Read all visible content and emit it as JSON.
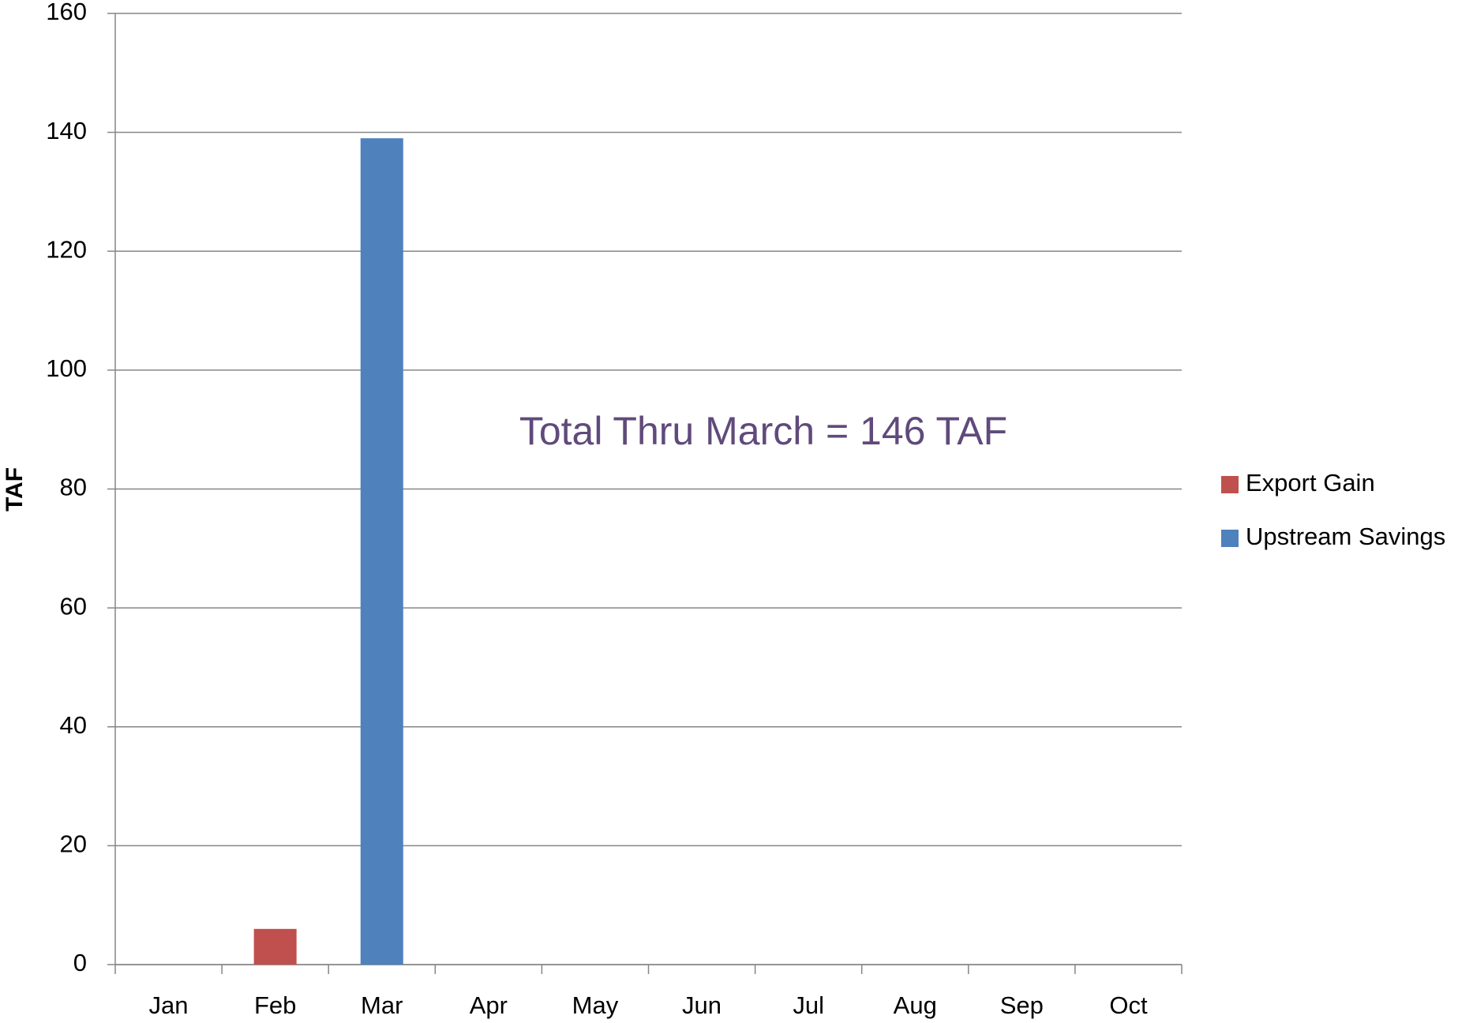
{
  "chart_data": {
    "type": "bar",
    "stacked": true,
    "annotation": "Total Thru March = 146 TAF",
    "y_label": "TAF",
    "categories": [
      "Jan",
      "Feb",
      "Mar",
      "Apr",
      "May",
      "Jun",
      "Jul",
      "Aug",
      "Sep",
      "Oct"
    ],
    "series": [
      {
        "name": "Export Gain",
        "color": "#c0504d",
        "values": [
          null,
          6,
          null,
          null,
          null,
          null,
          null,
          null,
          null,
          null
        ]
      },
      {
        "name": "Upstream Savings",
        "color": "#4f81bd",
        "values": [
          null,
          null,
          139,
          null,
          null,
          null,
          null,
          null,
          null,
          null
        ]
      }
    ],
    "ylim": [
      0,
      160
    ],
    "yticks": [
      0,
      20,
      40,
      60,
      80,
      100,
      120,
      140,
      160
    ],
    "grid": true,
    "legend": "right"
  }
}
